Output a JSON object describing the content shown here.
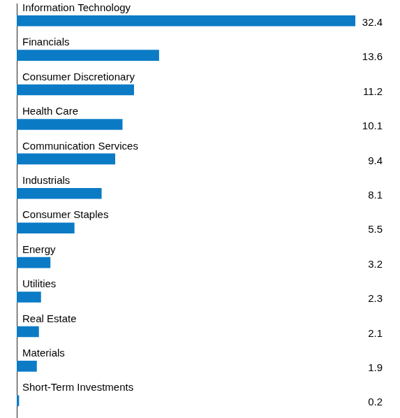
{
  "chart_data": {
    "type": "bar",
    "orientation": "horizontal",
    "categories": [
      "Information Technology",
      "Financials",
      "Consumer Discretionary",
      "Health Care",
      "Communication Services",
      "Industrials",
      "Consumer Staples",
      "Energy",
      "Utilities",
      "Real Estate",
      "Materials",
      "Short-Term Investments"
    ],
    "values": [
      32.4,
      13.6,
      11.2,
      10.1,
      9.4,
      8.1,
      5.5,
      3.2,
      2.3,
      2.1,
      1.9,
      0.2
    ],
    "color": "#0b7bc6",
    "xlim": [
      0,
      32.4
    ],
    "grid": false,
    "tick_labels": false,
    "data_labels": true
  }
}
